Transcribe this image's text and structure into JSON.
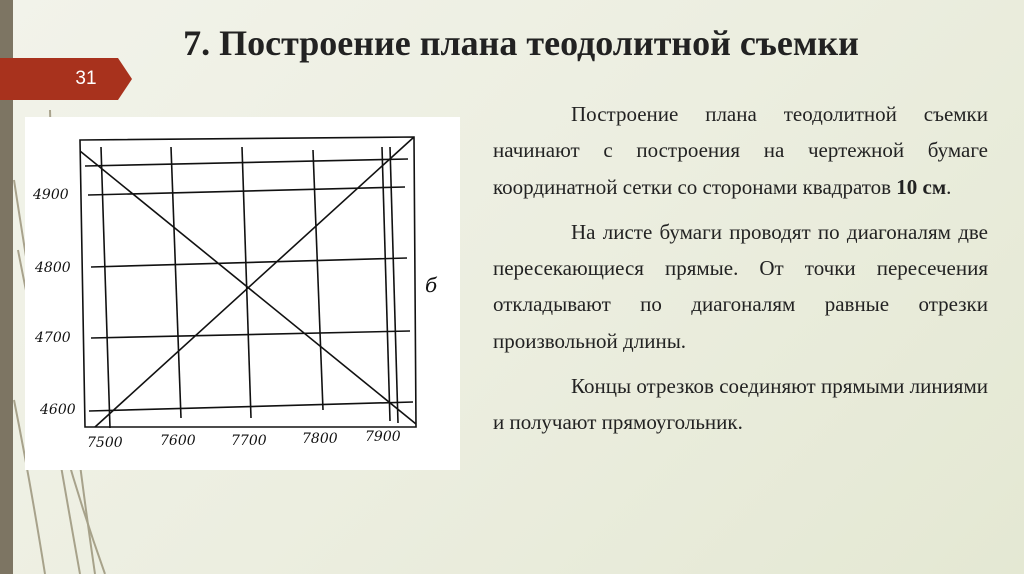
{
  "slide": {
    "number": "31",
    "title": "7. Построение плана теодолитной съемки",
    "accent_color": "#a8321d",
    "sidebar_color": "#7d7563"
  },
  "figure": {
    "y_labels": [
      "4900",
      "4800",
      "4700",
      "4600"
    ],
    "x_labels": [
      "7500",
      "7600",
      "7700",
      "7800",
      "7900"
    ],
    "side_label": "б"
  },
  "body": {
    "p1_text": "Построение плана теодолитной съемки начинают с построения на чертежной бумаге координатной сетки со сторонами квадратов ",
    "p1_bold": "10 см",
    "p1_end": ".",
    "p2": "На листе бумаги проводят по диагоналям две пересекающиеся прямые. От точки пересечения откладывают по диагоналям равные отрезки произвольной длины.",
    "p3": "Концы отрезков соединяют прямыми линиями и получают прямоугольник."
  }
}
